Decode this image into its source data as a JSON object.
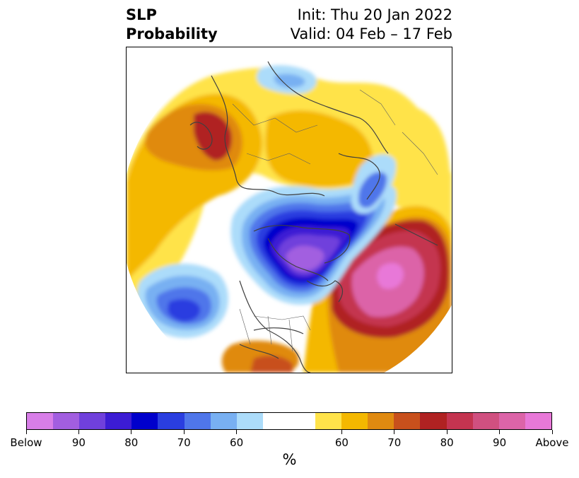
{
  "title": {
    "left_line1": "SLP",
    "left_line2": "Probability",
    "right_line1": "Init: Thu 20 Jan 2022",
    "right_line2": "Valid: 04 Feb – 17 Feb"
  },
  "colorbar": {
    "colors": [
      "#d87ee8",
      "#a25ee0",
      "#7040dc",
      "#3c1cd4",
      "#0000cc",
      "#2a3ee0",
      "#4f76ea",
      "#78b0f2",
      "#acdcfa",
      "#ffffff",
      "#ffffff",
      "#ffe34a",
      "#f4b800",
      "#e08a10",
      "#c8501c",
      "#b02222",
      "#c43450",
      "#d05080",
      "#dc64a8",
      "#e878d8"
    ],
    "tick_labels": [
      "Below",
      "90",
      "80",
      "70",
      "60",
      "60",
      "70",
      "80",
      "90",
      "Above"
    ],
    "unit_label": "%"
  },
  "map": {
    "description_colors": {
      "orange_yellow": "#f4b800",
      "light_yellow": "#ffe34a",
      "red": "#b02222",
      "pink": "#dc64a8",
      "blue": "#2a3ee0",
      "purple": "#a25ee0"
    }
  }
}
